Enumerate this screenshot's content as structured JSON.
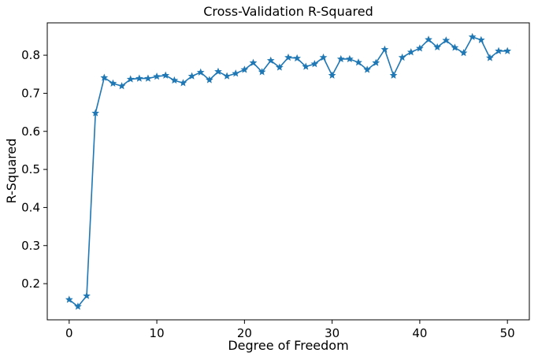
{
  "chart_data": {
    "type": "line",
    "title": "Cross-Validation R-Squared",
    "xlabel": "Degree of Freedom",
    "ylabel": "R-Squared",
    "xlim": [
      -2.5,
      52.5
    ],
    "ylim": [
      0.105,
      0.885
    ],
    "xticks": [
      0,
      10,
      20,
      30,
      40,
      50
    ],
    "yticks": [
      0.2,
      0.3,
      0.4,
      0.5,
      0.6,
      0.7,
      0.8
    ],
    "grid": false,
    "marker": "star",
    "color": "#1f77b4",
    "series": [
      {
        "x": [
          0,
          1,
          2,
          3,
          4,
          5,
          6,
          7,
          8,
          9,
          10,
          11,
          12,
          13,
          14,
          15,
          16,
          17,
          18,
          19,
          20,
          21,
          22,
          23,
          24,
          25,
          26,
          27,
          28,
          29,
          30,
          31,
          32,
          33,
          34,
          35,
          36,
          37,
          38,
          39,
          40,
          41,
          42,
          43,
          44,
          45,
          46,
          47,
          48,
          49,
          50
        ],
        "values": [
          0.158,
          0.14,
          0.168,
          0.648,
          0.741,
          0.726,
          0.719,
          0.737,
          0.739,
          0.739,
          0.744,
          0.747,
          0.734,
          0.727,
          0.745,
          0.755,
          0.735,
          0.757,
          0.745,
          0.752,
          0.762,
          0.78,
          0.756,
          0.786,
          0.768,
          0.794,
          0.792,
          0.77,
          0.777,
          0.794,
          0.747,
          0.79,
          0.79,
          0.781,
          0.762,
          0.78,
          0.815,
          0.747,
          0.794,
          0.808,
          0.818,
          0.841,
          0.821,
          0.839,
          0.82,
          0.806,
          0.848,
          0.84,
          0.793,
          0.811,
          0.811
        ]
      }
    ]
  }
}
